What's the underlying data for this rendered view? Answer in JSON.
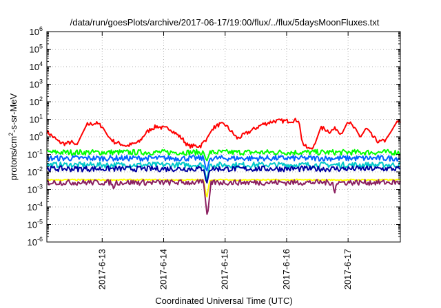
{
  "chart_data": {
    "type": "line",
    "title": "/data/run/goesPlots/archive/2017-06-17/19:00/flux/../flux/5daysMoonFluxes.txt",
    "xlabel": "Coordinated Universal Time (UTC)",
    "ylabel": {
      "prefix": "protons/cm",
      "sup": "2",
      "suffix": "-s-sr-MeV"
    },
    "yscale": "log",
    "ylim_exp": [
      -6,
      6
    ],
    "y_tick_exponents": [
      -6,
      -5,
      -4,
      -3,
      -2,
      -1,
      0,
      1,
      2,
      3,
      4,
      5,
      6
    ],
    "y_tick_base": "10",
    "xlim_days": [
      12.1,
      17.85
    ],
    "x_ticks": [
      {
        "label": "2017-6-13",
        "day": 13
      },
      {
        "label": "2017-6-14",
        "day": 14
      },
      {
        "label": "2017-6-15",
        "day": 15
      },
      {
        "label": "2017-6-16",
        "day": 16
      },
      {
        "label": "2017-6-17",
        "day": 17
      }
    ],
    "grid": true,
    "legend": "none",
    "series": [
      {
        "color": "#ff0000",
        "x": [
          12.1,
          12.2,
          12.3,
          12.4,
          12.5,
          12.58,
          12.65,
          12.75,
          12.9,
          13.0,
          13.1,
          13.2,
          13.3,
          13.4,
          13.6,
          13.7,
          13.8,
          13.9,
          14.0,
          14.1,
          14.2,
          14.3,
          14.4,
          14.5,
          14.6,
          14.7,
          14.8,
          14.9,
          15.0,
          15.1,
          15.2,
          15.4,
          15.6,
          15.8,
          16.0,
          16.2,
          16.25,
          16.3,
          16.35,
          16.45,
          16.55,
          16.6,
          16.7,
          16.8,
          16.9,
          17.0,
          17.1,
          17.2,
          17.3,
          17.4,
          17.5,
          17.6,
          17.7,
          17.8,
          17.85
        ],
        "y": [
          2.0,
          1.0,
          0.5,
          0.4,
          0.5,
          0.3,
          1.0,
          5.0,
          6.0,
          4.0,
          1.0,
          0.5,
          0.4,
          0.3,
          0.5,
          1.5,
          3.0,
          4.0,
          3.0,
          3.0,
          1.5,
          0.8,
          0.3,
          0.3,
          0.3,
          0.8,
          3.0,
          5.0,
          5.0,
          2.0,
          0.8,
          2.0,
          5.0,
          8.0,
          8.0,
          9.0,
          0.5,
          0.3,
          0.2,
          0.3,
          3.0,
          3.0,
          2.0,
          3.0,
          1.5,
          8.0,
          3.0,
          1.0,
          3.0,
          1.0,
          0.5,
          0.6,
          2.0,
          8.0,
          8.0
        ]
      },
      {
        "color": "#00ff00",
        "x": [
          12.1,
          14.65,
          14.7,
          14.75,
          17.85
        ],
        "y": [
          0.13,
          0.13,
          0.04,
          0.13,
          0.13
        ]
      },
      {
        "color": "#00c8c8",
        "x": [
          12.1,
          14.65,
          14.7,
          14.75,
          17.85
        ],
        "y": [
          0.025,
          0.025,
          0.003,
          0.025,
          0.025
        ]
      },
      {
        "color": "#0064ff",
        "x": [
          12.1,
          14.65,
          14.7,
          14.75,
          17.85
        ],
        "y": [
          0.06,
          0.06,
          0.01,
          0.06,
          0.06
        ]
      },
      {
        "color": "#0000a0",
        "x": [
          12.1,
          14.65,
          14.7,
          14.75,
          17.85
        ],
        "y": [
          0.015,
          0.015,
          0.002,
          0.015,
          0.015
        ]
      },
      {
        "color": "#ffff00",
        "x": [
          12.1,
          14.65,
          14.7,
          14.75,
          17.85
        ],
        "y": [
          0.0035,
          0.0035,
          0.0003,
          0.0035,
          0.0035
        ]
      },
      {
        "color": "#8b2060",
        "x": [
          12.1,
          13.15,
          13.18,
          13.21,
          14.65,
          14.71,
          14.77,
          16.75,
          16.78,
          16.81,
          17.85
        ],
        "y": [
          0.0025,
          0.0025,
          0.001,
          0.0025,
          0.0025,
          2.5e-05,
          0.0025,
          0.0025,
          0.0005,
          0.0025,
          0.0025
        ]
      }
    ]
  }
}
